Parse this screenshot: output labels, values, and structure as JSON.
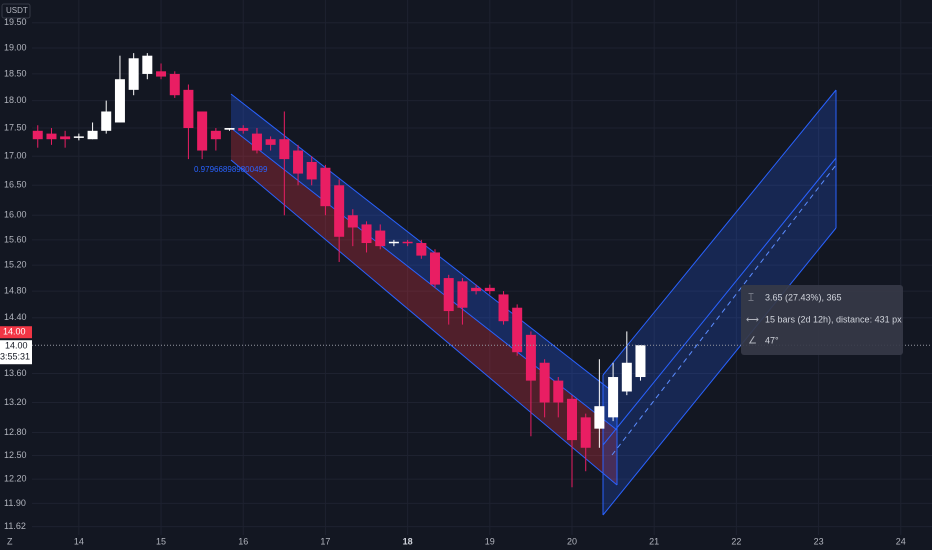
{
  "chart_data": {
    "type": "candlestick",
    "currency": "USDT",
    "x": [
      13.5,
      13.667,
      13.833,
      14,
      14.167,
      14.333,
      14.5,
      14.667,
      14.833,
      15,
      15.167,
      15.333,
      15.5,
      15.667,
      15.833,
      16,
      16.167,
      16.333,
      16.5,
      16.667,
      16.833,
      17,
      17.167,
      17.333,
      17.5,
      17.667,
      17.833,
      18,
      18.167,
      18.333,
      18.5,
      18.667,
      18.833,
      19,
      19.167,
      19.333,
      19.5,
      19.667,
      19.833,
      20,
      20.167,
      20.333,
      20.5,
      20.667,
      20.833
    ],
    "open": [
      17.45,
      17.4,
      17.35,
      17.33,
      17.3,
      17.45,
      17.6,
      18.2,
      18.5,
      18.55,
      18.5,
      18.2,
      17.8,
      17.45,
      17.47,
      17.5,
      17.4,
      17.3,
      17.3,
      17.1,
      16.9,
      16.8,
      16.5,
      16.0,
      15.85,
      15.75,
      15.55,
      15.57,
      15.55,
      15.4,
      15.0,
      14.95,
      14.85,
      14.85,
      14.75,
      14.55,
      14.15,
      13.75,
      13.5,
      13.25,
      13.0,
      12.85,
      13.0,
      13.35,
      13.55
    ],
    "high": [
      17.55,
      17.5,
      17.45,
      17.4,
      17.6,
      18.0,
      18.85,
      18.9,
      18.9,
      18.7,
      18.55,
      18.3,
      17.8,
      17.5,
      17.5,
      17.55,
      17.5,
      17.35,
      17.8,
      17.2,
      17.0,
      16.85,
      16.6,
      16.1,
      15.9,
      15.85,
      15.6,
      15.6,
      15.6,
      15.45,
      15.05,
      15.0,
      14.9,
      14.9,
      14.8,
      14.6,
      14.2,
      13.8,
      13.55,
      13.3,
      13.05,
      13.8,
      13.75,
      14.2,
      14.0
    ],
    "low": [
      17.15,
      17.2,
      17.15,
      17.28,
      17.3,
      17.4,
      17.6,
      18.1,
      18.4,
      18.4,
      18.05,
      16.95,
      16.95,
      17.1,
      17.45,
      17.4,
      17.05,
      17.1,
      16.0,
      16.5,
      16.5,
      16.0,
      15.25,
      15.5,
      15.4,
      15.45,
      15.5,
      15.5,
      15.3,
      14.85,
      14.3,
      14.3,
      14.75,
      14.75,
      14.3,
      13.85,
      12.75,
      13.0,
      13.0,
      12.1,
      12.3,
      12.6,
      12.95,
      13.3,
      13.5
    ],
    "close": [
      17.3,
      17.3,
      17.3,
      17.35,
      17.45,
      17.8,
      18.4,
      18.8,
      18.85,
      18.45,
      18.1,
      17.5,
      17.1,
      17.3,
      17.5,
      17.45,
      17.1,
      17.2,
      16.95,
      16.7,
      16.6,
      16.15,
      15.65,
      15.8,
      15.55,
      15.5,
      15.57,
      15.55,
      15.35,
      14.9,
      14.5,
      14.55,
      14.8,
      14.8,
      14.35,
      13.9,
      13.5,
      13.2,
      13.2,
      12.7,
      12.6,
      13.15,
      13.55,
      13.75,
      14.0
    ],
    "up_color": "#ffffff",
    "down_color": "#e91e63",
    "log_scale": true,
    "ylim": [
      11.52,
      19.96
    ],
    "yticks": [
      {
        "value": 19.5,
        "label": "19.50"
      },
      {
        "value": 19,
        "label": "19.00"
      },
      {
        "value": 18.5,
        "label": "18.50"
      },
      {
        "value": 18,
        "label": "18.00"
      },
      {
        "value": 17.5,
        "label": "17.50"
      },
      {
        "value": 17,
        "label": "17.00"
      },
      {
        "value": 16.5,
        "label": "16.50"
      },
      {
        "value": 16,
        "label": "16.00"
      },
      {
        "value": 15.6,
        "label": "15.60"
      },
      {
        "value": 15.2,
        "label": "15.20"
      },
      {
        "value": 14.8,
        "label": "14.80"
      },
      {
        "value": 14.4,
        "label": "14.40"
      },
      {
        "value": 13.6,
        "label": "13.60"
      },
      {
        "value": 13.2,
        "label": "13.20"
      },
      {
        "value": 12.8,
        "label": "12.80"
      },
      {
        "value": 12.5,
        "label": "12.50"
      },
      {
        "value": 12.2,
        "label": "12.20"
      },
      {
        "value": 11.9,
        "label": "11.90"
      },
      11.62
    ],
    "xlim": [
      13.43,
      24.38
    ],
    "xticks": [
      14,
      15,
      16,
      17,
      18,
      19,
      20,
      21,
      22,
      23,
      24
    ],
    "grid": true,
    "last_price": {
      "value": 14,
      "label": "14.00"
    },
    "countdown": "3:55:31",
    "channel_label": "0.979668989800499",
    "measure": [
      "3.65 (27.43%), 365",
      "15 bars (2d 12h), distance: 431 px",
      "47°"
    ],
    "logo": "Z"
  }
}
